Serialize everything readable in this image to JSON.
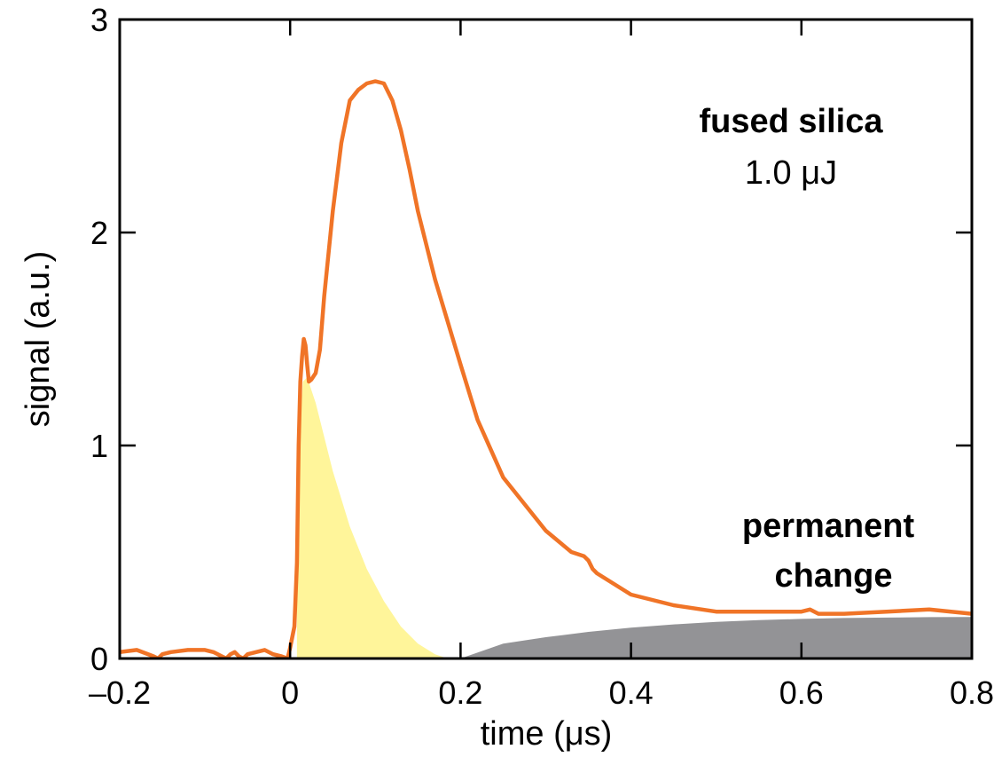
{
  "chart_data": {
    "type": "line",
    "xlabel": "time (μs)",
    "ylabel": "signal (a.u.)",
    "xlim": [
      -0.2,
      0.8
    ],
    "ylim": [
      0,
      3
    ],
    "xticks": [
      -0.2,
      0,
      0.2,
      0.4,
      0.6,
      0.8
    ],
    "xtick_labels": [
      "–0.2",
      "0",
      "0.2",
      "0.4",
      "0.6",
      "0.8"
    ],
    "yticks": [
      0,
      1,
      2,
      3
    ],
    "ytick_labels": [
      "0",
      "1",
      "2",
      "3"
    ],
    "grid": false,
    "annotations": [
      {
        "text": "fused silica",
        "weight": "bold"
      },
      {
        "text": "1.0 μJ",
        "weight": "normal"
      },
      {
        "text": "permanent",
        "weight": "bold"
      },
      {
        "text": "change",
        "weight": "bold"
      }
    ],
    "series": [
      {
        "color": "#f07427",
        "x": [
          -0.2,
          -0.18,
          -0.16,
          -0.155,
          -0.15,
          -0.14,
          -0.12,
          -0.1,
          -0.09,
          -0.08,
          -0.075,
          -0.07,
          -0.065,
          -0.06,
          -0.055,
          -0.05,
          -0.04,
          -0.03,
          -0.02,
          -0.01,
          -0.003,
          0.0,
          0.005,
          0.008,
          0.01,
          0.012,
          0.014,
          0.016,
          0.018,
          0.02,
          0.022,
          0.025,
          0.03,
          0.035,
          0.04,
          0.05,
          0.06,
          0.07,
          0.08,
          0.09,
          0.1,
          0.11,
          0.12,
          0.13,
          0.14,
          0.15,
          0.17,
          0.2,
          0.22,
          0.25,
          0.3,
          0.33,
          0.345,
          0.35,
          0.355,
          0.36,
          0.38,
          0.4,
          0.45,
          0.5,
          0.55,
          0.6,
          0.61,
          0.62,
          0.65,
          0.7,
          0.75,
          0.8
        ],
        "y": [
          0.03,
          0.04,
          0.01,
          0.0,
          0.02,
          0.03,
          0.04,
          0.04,
          0.03,
          0.01,
          0.0,
          0.02,
          0.03,
          0.01,
          0.0,
          0.02,
          0.03,
          0.04,
          0.02,
          0.01,
          0.0,
          0.05,
          0.15,
          0.45,
          1.0,
          1.3,
          1.42,
          1.5,
          1.47,
          1.38,
          1.3,
          1.31,
          1.34,
          1.45,
          1.7,
          2.1,
          2.42,
          2.62,
          2.67,
          2.7,
          2.71,
          2.7,
          2.62,
          2.48,
          2.3,
          2.1,
          1.78,
          1.38,
          1.12,
          0.85,
          0.6,
          0.5,
          0.48,
          0.46,
          0.42,
          0.4,
          0.35,
          0.3,
          0.25,
          0.22,
          0.22,
          0.22,
          0.23,
          0.21,
          0.21,
          0.22,
          0.23,
          0.21
        ]
      }
    ],
    "filled_regions": [
      {
        "color": "#fff59a",
        "x": [
          0.008,
          0.01,
          0.015,
          0.02,
          0.03,
          0.05,
          0.07,
          0.09,
          0.11,
          0.13,
          0.15,
          0.17,
          0.185
        ],
        "y": [
          0.45,
          1.0,
          1.3,
          1.32,
          1.2,
          0.88,
          0.62,
          0.42,
          0.27,
          0.15,
          0.07,
          0.02,
          0.0
        ]
      },
      {
        "color": "#939396",
        "x": [
          0.2,
          0.25,
          0.3,
          0.35,
          0.4,
          0.45,
          0.5,
          0.55,
          0.6,
          0.65,
          0.7,
          0.75,
          0.8
        ],
        "y": [
          0.0,
          0.07,
          0.1,
          0.125,
          0.145,
          0.16,
          0.172,
          0.18,
          0.186,
          0.19,
          0.192,
          0.194,
          0.195
        ]
      }
    ]
  }
}
